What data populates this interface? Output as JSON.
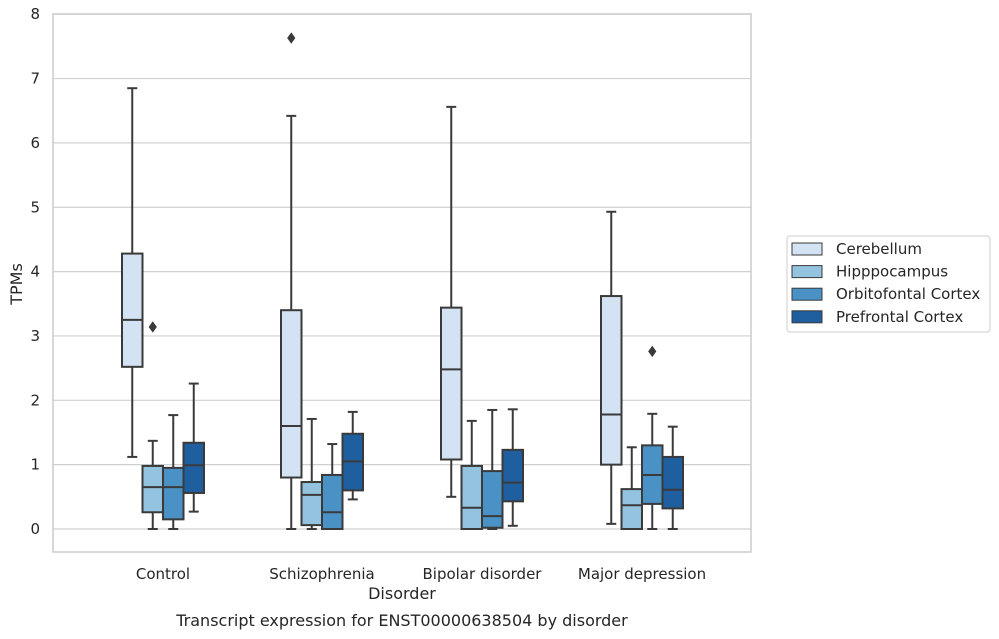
{
  "chart_data": {
    "type": "box",
    "title": "",
    "caption": "Transcript expression for ENST00000638504 by disorder",
    "xlabel": "Disorder",
    "ylabel": "TPMs",
    "ylim": [
      -0.35,
      8.05
    ],
    "yticks": [
      "0",
      "1",
      "2",
      "3",
      "4",
      "5",
      "6",
      "7",
      "8"
    ],
    "grid": "horizontal",
    "legend_position": "right",
    "categories": [
      "Control",
      "Schizophrenia",
      "Bipolar disorder",
      "Major depression"
    ],
    "series": [
      {
        "name": "Cerebellum",
        "color": "#d3e3f3",
        "boxes": [
          {
            "whisker_low": 1.12,
            "q1": 2.52,
            "median": 3.25,
            "q3": 4.28,
            "whisker_high": 6.85,
            "outliers": []
          },
          {
            "whisker_low": 0.0,
            "q1": 0.8,
            "median": 1.6,
            "q3": 3.4,
            "whisker_high": 6.42,
            "outliers": [
              7.63
            ]
          },
          {
            "whisker_low": 0.5,
            "q1": 1.08,
            "median": 2.48,
            "q3": 3.44,
            "whisker_high": 6.56,
            "outliers": []
          },
          {
            "whisker_low": 0.08,
            "q1": 1.0,
            "median": 1.78,
            "q3": 3.62,
            "whisker_high": 4.93,
            "outliers": []
          }
        ]
      },
      {
        "name": "Hipppocampus",
        "color": "#93c3df",
        "boxes": [
          {
            "whisker_low": 0.0,
            "q1": 0.26,
            "median": 0.65,
            "q3": 0.98,
            "whisker_high": 1.37,
            "outliers": [
              3.14
            ]
          },
          {
            "whisker_low": 0.0,
            "q1": 0.06,
            "median": 0.53,
            "q3": 0.73,
            "whisker_high": 1.71,
            "outliers": []
          },
          {
            "whisker_low": 0.0,
            "q1": 0.0,
            "median": 0.33,
            "q3": 0.98,
            "whisker_high": 1.68,
            "outliers": []
          },
          {
            "whisker_low": 0.0,
            "q1": 0.0,
            "median": 0.37,
            "q3": 0.62,
            "whisker_high": 1.27,
            "outliers": []
          }
        ]
      },
      {
        "name": "Orbitofontal Cortex",
        "color": "#4a91c6",
        "boxes": [
          {
            "whisker_low": 0.0,
            "q1": 0.15,
            "median": 0.65,
            "q3": 0.95,
            "whisker_high": 1.77,
            "outliers": []
          },
          {
            "whisker_low": 0.0,
            "q1": 0.0,
            "median": 0.26,
            "q3": 0.84,
            "whisker_high": 1.32,
            "outliers": []
          },
          {
            "whisker_low": 0.0,
            "q1": 0.02,
            "median": 0.2,
            "q3": 0.9,
            "whisker_high": 1.85,
            "outliers": []
          },
          {
            "whisker_low": 0.0,
            "q1": 0.39,
            "median": 0.84,
            "q3": 1.3,
            "whisker_high": 1.79,
            "outliers": [
              2.76
            ]
          }
        ]
      },
      {
        "name": "Prefrontal Cortex",
        "color": "#1f5f9f",
        "boxes": [
          {
            "whisker_low": 0.27,
            "q1": 0.56,
            "median": 0.99,
            "q3": 1.34,
            "whisker_high": 2.26,
            "outliers": []
          },
          {
            "whisker_low": 0.46,
            "q1": 0.6,
            "median": 1.05,
            "q3": 1.48,
            "whisker_high": 1.82,
            "outliers": []
          },
          {
            "whisker_low": 0.05,
            "q1": 0.43,
            "median": 0.72,
            "q3": 1.23,
            "whisker_high": 1.86,
            "outliers": []
          },
          {
            "whisker_low": 0.0,
            "q1": 0.32,
            "median": 0.61,
            "q3": 1.12,
            "whisker_high": 1.59,
            "outliers": []
          }
        ]
      }
    ]
  }
}
